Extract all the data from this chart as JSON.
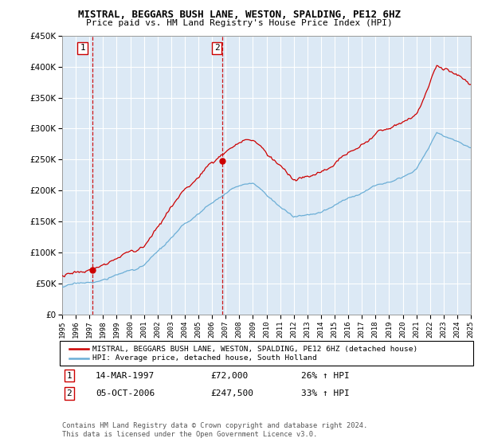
{
  "title": "MISTRAL, BEGGARS BUSH LANE, WESTON, SPALDING, PE12 6HZ",
  "subtitle": "Price paid vs. HM Land Registry's House Price Index (HPI)",
  "legend_line1": "MISTRAL, BEGGARS BUSH LANE, WESTON, SPALDING, PE12 6HZ (detached house)",
  "legend_line2": "HPI: Average price, detached house, South Holland",
  "footer1": "Contains HM Land Registry data © Crown copyright and database right 2024.",
  "footer2": "This data is licensed under the Open Government Licence v3.0.",
  "annotation1_label": "1",
  "annotation1_date": "14-MAR-1997",
  "annotation1_price": "£72,000",
  "annotation1_hpi": "26% ↑ HPI",
  "annotation2_label": "2",
  "annotation2_date": "05-OCT-2006",
  "annotation2_price": "£247,500",
  "annotation2_hpi": "33% ↑ HPI",
  "sale1_year": 1997.2,
  "sale1_value": 72000,
  "sale2_year": 2006.75,
  "sale2_value": 247500,
  "hpi_color": "#6baed6",
  "price_color": "#cc0000",
  "bg_color": "#dce9f5",
  "grid_color": "#ffffff",
  "annotation_color": "#cc0000",
  "ylim": [
    0,
    450000
  ],
  "xlim_start": 1995,
  "xlim_end": 2025
}
